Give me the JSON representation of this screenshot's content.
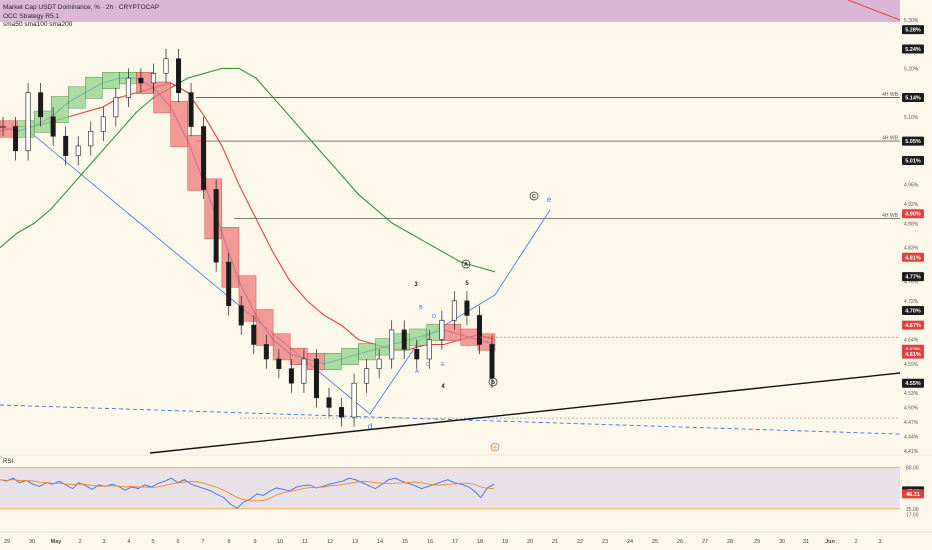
{
  "legend": {
    "title": "Market Cap USDT Dominance, % · 2h · CRYPTOCAP",
    "indicator1": "OCC Strategy R5.1",
    "indicator2": "sma50 sma100 sma200",
    "rsi": "RSI"
  },
  "colors": {
    "background": "#fdf9ea",
    "purple_zone": "#d9b7d6",
    "candle": "#1a1a1a",
    "sma50": "#3a6fd8",
    "sma100": "#e0413d",
    "sma200": "#3d8f3d",
    "occ_fill_red": "#ef7a7a",
    "occ_fill_green": "#8fd18a",
    "trend_blue": "#3d6fe0",
    "rsi_line": "#3d6fe0",
    "rsi_ma": "#ee8a2a",
    "rsi_band": "#e6dfe8",
    "rsi_bound": "#f2a33a",
    "current_price": "#e0413d"
  },
  "annotations": {
    "wave_circle_c": "C",
    "wave_e": "e",
    "wave_circle_a": "A",
    "wave_3": "3",
    "wave_5": "5",
    "wave_b": "B",
    "wave_d_small": "D",
    "wave_a_small": "A",
    "wave_c_small": "C",
    "wave_e_small": "E",
    "wave_4": "4",
    "wave_circle_b": "B",
    "wave_d": "d",
    "flash_icon": "⚡"
  },
  "chart_data": {
    "type": "candlestick",
    "title": "Market Cap USDT Dominance, % · 2h · CRYPTOCAP",
    "x_axis_labels": [
      "29",
      "30",
      "May",
      "2",
      "3",
      "4",
      "5",
      "6",
      "7",
      "8",
      "9",
      "10",
      "11",
      "12",
      "13",
      "14",
      "15",
      "16",
      "17",
      "18",
      "19",
      "20",
      "21",
      "22",
      "23",
      "24",
      "25",
      "26",
      "27",
      "28",
      "29",
      "30",
      "31",
      "Jun",
      "2",
      "3"
    ],
    "y_axis_labels": [
      "5.30%",
      "5.28%",
      "5.24%",
      "5.20%",
      "5.14%",
      "5.10%",
      "5.05%",
      "5.01%",
      "4.96%",
      "4.92%",
      "4.90%",
      "4.88%",
      "4.83%",
      "4.81%",
      "4.77%",
      "4.76%",
      "4.72%",
      "4.70%",
      "4.67%",
      "4.64%",
      "4.62%",
      "4.61%",
      "4.59%",
      "4.55%",
      "4.53%",
      "4.50%",
      "4.47%",
      "4.44%",
      "4.41%"
    ],
    "price_badges": [
      {
        "value": "5.28%",
        "style": "dark"
      },
      {
        "value": "5.24%",
        "style": "dark"
      },
      {
        "value": "5.14%",
        "style": "dark"
      },
      {
        "value": "5.05%",
        "style": "dark"
      },
      {
        "value": "5.01%",
        "style": "dark"
      },
      {
        "value": "4.90%",
        "style": "red"
      },
      {
        "value": "4.81%",
        "style": "red"
      },
      {
        "value": "4.77%",
        "style": "dark"
      },
      {
        "value": "4.70%",
        "style": "dark"
      },
      {
        "value": "4.67%",
        "style": "red"
      },
      {
        "value": "4.62%",
        "style": "red"
      },
      {
        "value": "4.61%",
        "style": "red"
      },
      {
        "value": "4.55%",
        "style": "dark"
      }
    ],
    "horizontal_levels": [
      {
        "value": 5.14,
        "label": "4H WB"
      },
      {
        "value": 5.05,
        "label": "4H WB"
      },
      {
        "value": 4.89,
        "label": "4H WB"
      }
    ],
    "rsi": {
      "y_axis_labels": [
        "80.00",
        "25.00",
        "17.50"
      ],
      "badges": [
        {
          "value": "47.99",
          "style": "dark"
        },
        {
          "value": "46.31",
          "style": "red"
        }
      ],
      "upper_bound": 80,
      "lower_bound": 25,
      "values": [
        64,
        62,
        66,
        60,
        63,
        58,
        55,
        60,
        58,
        62,
        57,
        52,
        60,
        56,
        51,
        57,
        55,
        58,
        55,
        50,
        54,
        52,
        57,
        54,
        59,
        62,
        66,
        60,
        64,
        58,
        55,
        52,
        49,
        44,
        40,
        31,
        26,
        34,
        38,
        45,
        43,
        49,
        53,
        51,
        49,
        54,
        56,
        57,
        53,
        55,
        58,
        60,
        62,
        66,
        64,
        60,
        56,
        52,
        58,
        64,
        66,
        62,
        59,
        56,
        52,
        55,
        58,
        61,
        64,
        60,
        58,
        55,
        49,
        40,
        53,
        58
      ]
    },
    "sma200": [
      4.83,
      4.86,
      4.88,
      4.91,
      4.95,
      4.99,
      5.03,
      5.07,
      5.11,
      5.14,
      5.16,
      5.18,
      5.19,
      5.2,
      5.2,
      5.18,
      5.14,
      5.1,
      5.06,
      5.02,
      4.98,
      4.94,
      4.91,
      4.88,
      4.86,
      4.84,
      4.82,
      4.8,
      4.79,
      4.78
    ],
    "sma100": [
      5.07,
      5.08,
      5.08,
      5.09,
      5.1,
      5.11,
      5.12,
      5.14,
      5.15,
      5.16,
      5.17,
      5.15,
      5.1,
      5.04,
      4.96,
      4.89,
      4.82,
      4.76,
      4.72,
      4.69,
      4.67,
      4.64,
      4.63,
      4.62,
      4.62,
      4.63,
      4.63,
      4.64,
      4.65,
      4.64
    ],
    "sma50": [
      5.08,
      5.07,
      5.08,
      5.1,
      5.13,
      5.15,
      5.17,
      5.18,
      5.18,
      5.16,
      5.12,
      5.05,
      4.96,
      4.86,
      4.76,
      4.69,
      4.64,
      4.61,
      4.6,
      4.59,
      4.6,
      4.61,
      4.62,
      4.63,
      4.64,
      4.65,
      4.66,
      4.65,
      4.64,
      4.63
    ],
    "close": [
      5.08,
      5.03,
      5.15,
      5.1,
      5.06,
      5.02,
      5.04,
      5.07,
      5.1,
      5.14,
      5.18,
      5.17,
      5.19,
      5.22,
      5.15,
      5.08,
      4.95,
      4.8,
      4.71,
      4.67,
      4.63,
      4.6,
      4.58,
      4.55,
      4.6,
      4.52,
      4.5,
      4.48,
      4.55,
      4.58,
      4.6,
      4.66,
      4.62,
      4.6,
      4.64,
      4.68,
      4.72,
      4.69,
      4.63,
      4.56
    ]
  }
}
